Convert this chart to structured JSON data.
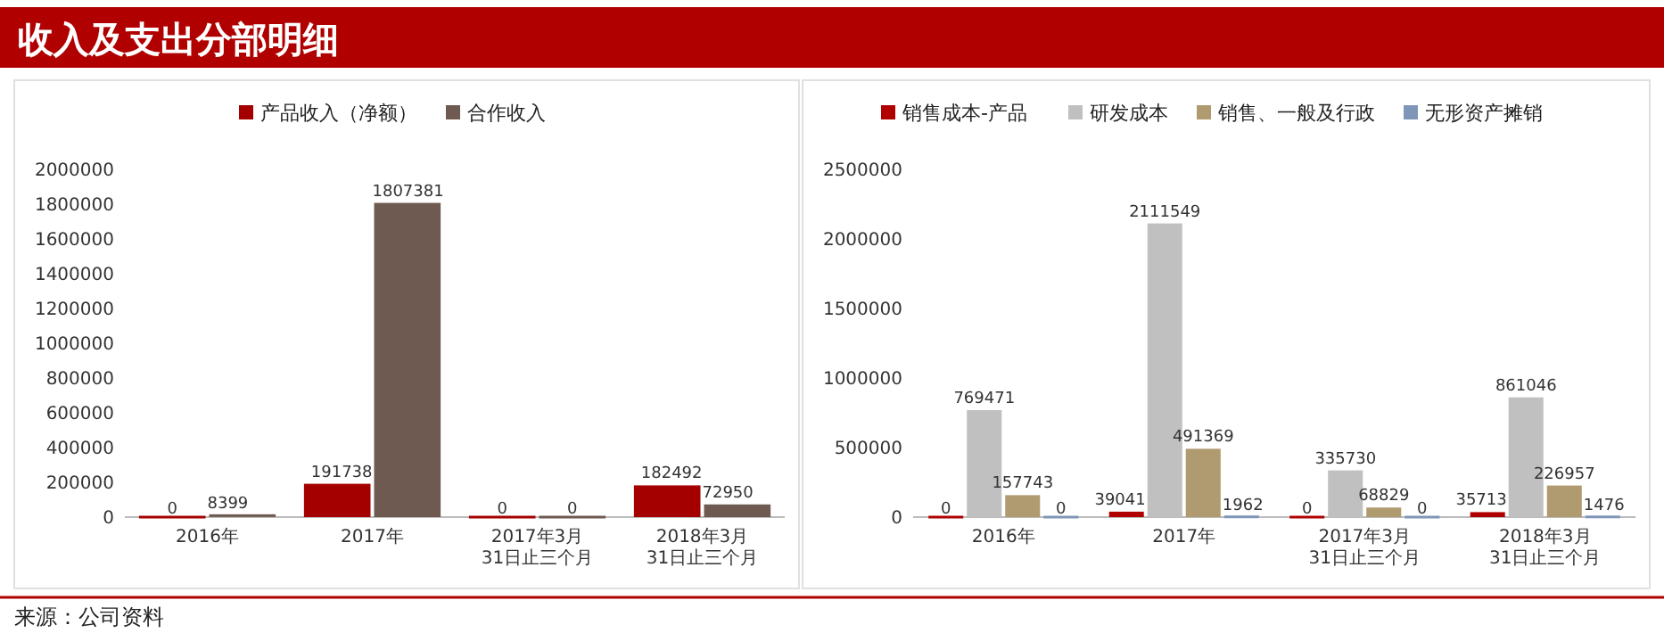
{
  "chart_data": [
    {
      "type": "bar",
      "title": "收入及支出分部明细",
      "categories": [
        "2016年",
        "2017年",
        "2017年3月31日止三个月",
        "2018年3月31日止三个月"
      ],
      "series": [
        {
          "name": "产品收入（净额）",
          "color": "#a50000",
          "values": [
            0,
            191738,
            0,
            182492
          ]
        },
        {
          "name": "合作收入",
          "color": "#6e5a50",
          "values": [
            8399,
            1807381,
            0,
            72950
          ]
        }
      ],
      "ylim": [
        0,
        2000000
      ],
      "yticks": [
        0,
        200000,
        400000,
        600000,
        800000,
        1000000,
        1200000,
        1400000,
        1600000,
        1800000,
        2000000
      ],
      "data_labels": true,
      "legend": "top",
      "grid": false
    },
    {
      "type": "bar",
      "categories": [
        "2016年",
        "2017年",
        "2017年3月31日止三个月",
        "2018年3月31日止三个月"
      ],
      "series": [
        {
          "name": "销售成本-产品",
          "color": "#b00000",
          "values": [
            0,
            39041,
            0,
            35713
          ]
        },
        {
          "name": "研发成本",
          "color": "#c0c0c0",
          "values": [
            769471,
            2111549,
            335730,
            861046
          ]
        },
        {
          "name": "销售、一般及行政",
          "color": "#b09a70",
          "values": [
            157743,
            491369,
            68829,
            226957
          ]
        },
        {
          "name": "无形资产摊销",
          "color": "#7f96b8",
          "values": [
            0,
            1962,
            0,
            1476
          ]
        }
      ],
      "ylim": [
        0,
        2500000
      ],
      "yticks": [
        0,
        500000,
        1000000,
        1500000,
        2000000,
        2500000
      ],
      "data_labels": true,
      "legend": "top",
      "grid": false,
      "annotations": [
        "来源：公司资料"
      ]
    }
  ]
}
